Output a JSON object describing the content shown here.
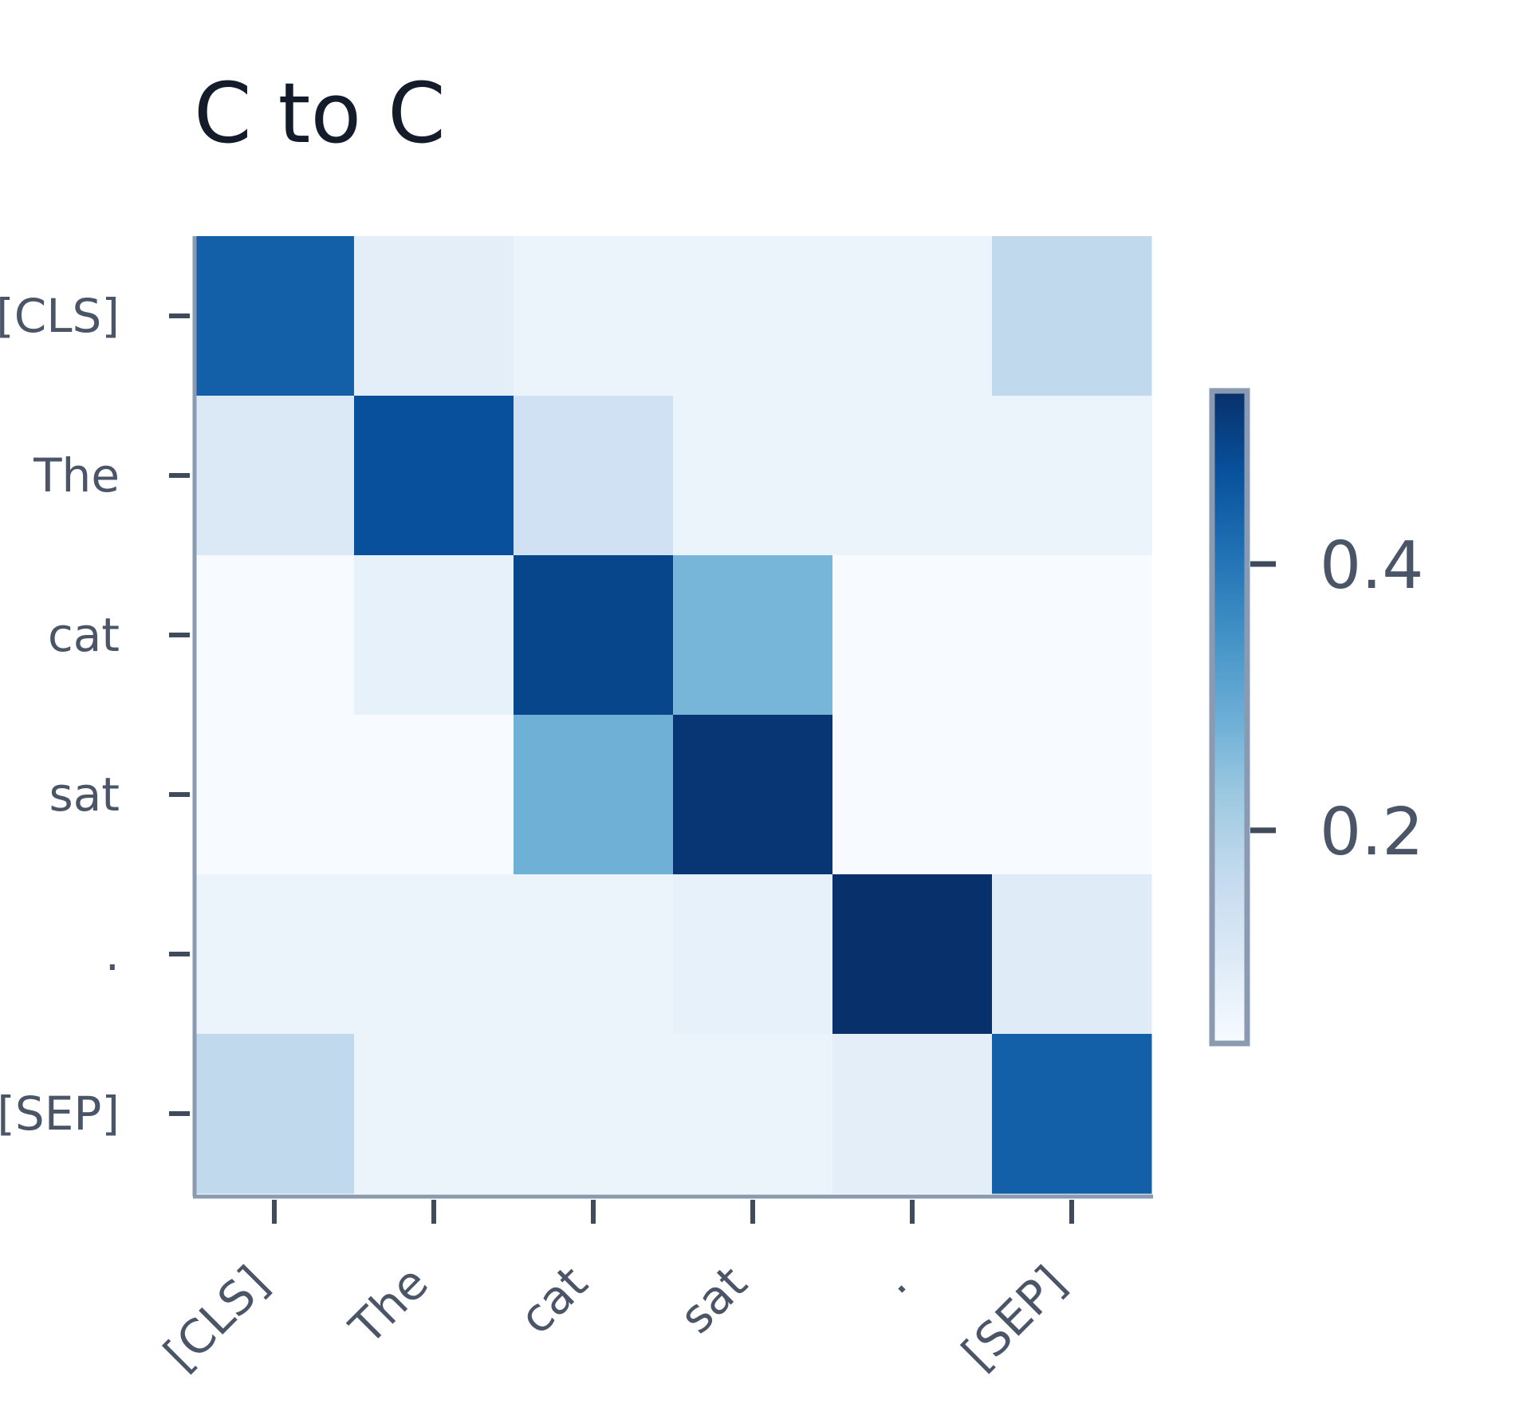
{
  "chart_data": {
    "type": "heatmap",
    "title": "C to C",
    "xlabel": "",
    "ylabel": "",
    "x_categories": [
      "[CLS]",
      "The",
      "cat",
      "sat",
      ".",
      "[SEP]"
    ],
    "y_categories": [
      "[CLS]",
      "The",
      "cat",
      "sat",
      ".",
      "[SEP]"
    ],
    "values": [
      [
        0.44,
        0.09,
        0.07,
        0.07,
        0.07,
        0.17
      ],
      [
        0.11,
        0.47,
        0.14,
        0.07,
        0.07,
        0.07
      ],
      [
        0.03,
        0.08,
        0.49,
        0.27,
        0.02,
        0.03
      ],
      [
        0.04,
        0.04,
        0.28,
        0.52,
        0.04,
        0.04
      ],
      [
        0.07,
        0.07,
        0.07,
        0.08,
        0.53,
        0.1
      ],
      [
        0.17,
        0.07,
        0.07,
        0.07,
        0.09,
        0.44
      ]
    ],
    "colorscale": "Blues",
    "color_range": [
      0.04,
      0.53
    ],
    "colorbar": {
      "ticks": [
        0.2,
        0.4
      ],
      "tick_labels": [
        "0.2",
        "0.4"
      ]
    },
    "grid": false,
    "legend": "none"
  }
}
